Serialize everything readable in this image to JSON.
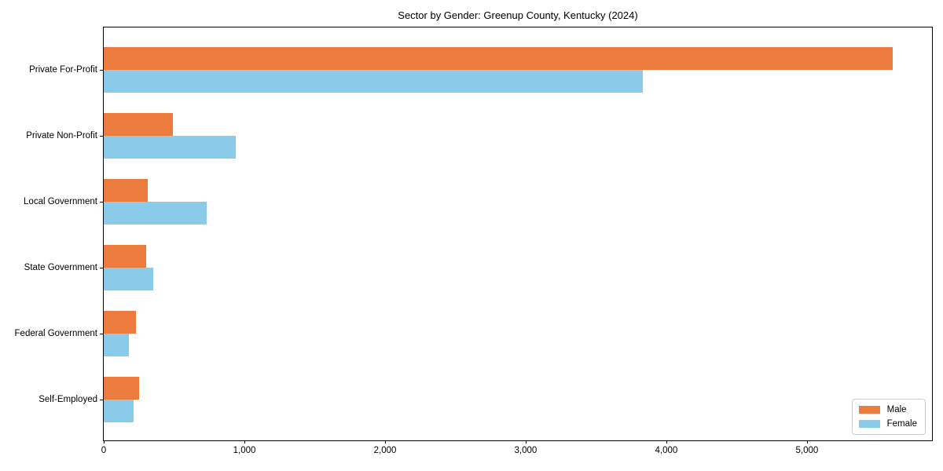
{
  "chart_data": {
    "type": "bar",
    "orientation": "horizontal",
    "title": "Sector by Gender: Greenup County, Kentucky (2024)",
    "categories": [
      "Private For-Profit",
      "Private Non-Profit",
      "Local Government",
      "State Government",
      "Federal Government",
      "Self-Employed"
    ],
    "series": [
      {
        "name": "Male",
        "color": "#ec7b3e",
        "values": [
          5610,
          490,
          315,
          300,
          230,
          250
        ]
      },
      {
        "name": "Female",
        "color": "#89cbe8",
        "values": [
          3830,
          940,
          730,
          350,
          180,
          210
        ]
      }
    ],
    "xlabel": "",
    "ylabel": "",
    "xlim": [
      0,
      5900
    ],
    "xticks": [
      0,
      1000,
      2000,
      3000,
      4000,
      5000
    ],
    "xtick_labels": [
      "0",
      "1,000",
      "2,000",
      "3,000",
      "4,000",
      "5,000"
    ],
    "grid": false,
    "legend_position": "lower right"
  }
}
